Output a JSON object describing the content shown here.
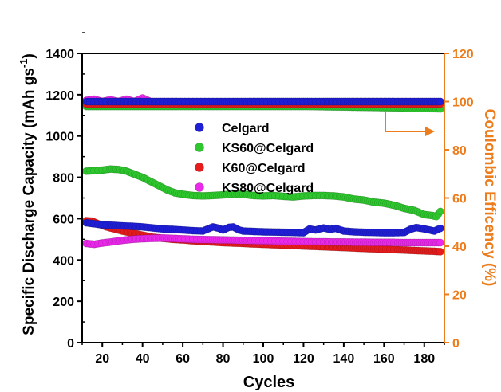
{
  "chart_data": {
    "type": "scatter",
    "xlabel": "Cycles",
    "ylabel_left": "Specific Discharge Capacity (mAh gs",
    "ylabel_left_sup": "-1",
    "ylabel_left_close": ")",
    "ylabel_right": "Coulombic Efficency (%)",
    "xlim": [
      10,
      190
    ],
    "ylim_left": [
      0,
      1400
    ],
    "ylim_right": [
      0,
      120
    ],
    "x_ticks": [
      20,
      40,
      60,
      80,
      100,
      120,
      140,
      160,
      180
    ],
    "y_ticks_left": [
      0,
      200,
      400,
      600,
      800,
      1000,
      1200,
      1400
    ],
    "y_ticks_right": [
      0,
      20,
      40,
      60,
      80,
      100,
      120
    ],
    "grid": false,
    "legend_position": "center",
    "right_axis_color": "#ec7c1c",
    "series": [
      {
        "name": "Celgard",
        "color": "#1f1fd8",
        "axis": "left",
        "capacity_points": [
          [
            12,
            580
          ],
          [
            16,
            575
          ],
          [
            20,
            570
          ],
          [
            25,
            568
          ],
          [
            30,
            565
          ],
          [
            35,
            563
          ],
          [
            40,
            560
          ],
          [
            45,
            555
          ],
          [
            50,
            550
          ],
          [
            55,
            548
          ],
          [
            60,
            545
          ],
          [
            65,
            542
          ],
          [
            70,
            540
          ],
          [
            72,
            548
          ],
          [
            75,
            560
          ],
          [
            78,
            553
          ],
          [
            80,
            545
          ],
          [
            83,
            558
          ],
          [
            85,
            560
          ],
          [
            88,
            545
          ],
          [
            90,
            540
          ],
          [
            95,
            538
          ],
          [
            100,
            536
          ],
          [
            105,
            535
          ],
          [
            110,
            534
          ],
          [
            115,
            533
          ],
          [
            120,
            532
          ],
          [
            123,
            550
          ],
          [
            126,
            545
          ],
          [
            130,
            555
          ],
          [
            133,
            548
          ],
          [
            136,
            553
          ],
          [
            140,
            540
          ],
          [
            145,
            536
          ],
          [
            150,
            534
          ],
          [
            155,
            533
          ],
          [
            160,
            532
          ],
          [
            165,
            532
          ],
          [
            170,
            533
          ],
          [
            173,
            548
          ],
          [
            176,
            557
          ],
          [
            180,
            550
          ],
          [
            185,
            540
          ],
          [
            188,
            553
          ]
        ],
        "efficiency": [
          [
            12,
            100
          ],
          [
            40,
            100
          ],
          [
            80,
            100
          ],
          [
            120,
            100
          ],
          [
            160,
            100
          ],
          [
            188,
            100
          ]
        ]
      },
      {
        "name": "KS60@Celgard",
        "color": "#2ec82e",
        "axis": "left",
        "capacity_points": [
          [
            12,
            830
          ],
          [
            16,
            832
          ],
          [
            20,
            835
          ],
          [
            24,
            840
          ],
          [
            28,
            838
          ],
          [
            32,
            830
          ],
          [
            36,
            815
          ],
          [
            40,
            800
          ],
          [
            44,
            780
          ],
          [
            48,
            760
          ],
          [
            52,
            740
          ],
          [
            56,
            725
          ],
          [
            60,
            718
          ],
          [
            65,
            712
          ],
          [
            70,
            710
          ],
          [
            75,
            712
          ],
          [
            80,
            715
          ],
          [
            85,
            720
          ],
          [
            90,
            718
          ],
          [
            95,
            712
          ],
          [
            100,
            710
          ],
          [
            105,
            712
          ],
          [
            110,
            708
          ],
          [
            115,
            705
          ],
          [
            120,
            710
          ],
          [
            125,
            712
          ],
          [
            130,
            712
          ],
          [
            135,
            710
          ],
          [
            140,
            705
          ],
          [
            145,
            695
          ],
          [
            150,
            690
          ],
          [
            155,
            680
          ],
          [
            160,
            675
          ],
          [
            165,
            665
          ],
          [
            170,
            650
          ],
          [
            175,
            640
          ],
          [
            180,
            620
          ],
          [
            184,
            615
          ],
          [
            186,
            610
          ],
          [
            188,
            635
          ]
        ],
        "efficiency": [
          [
            12,
            98
          ],
          [
            40,
            98
          ],
          [
            80,
            98
          ],
          [
            120,
            98
          ],
          [
            160,
            97.5
          ],
          [
            188,
            97
          ]
        ]
      },
      {
        "name": "K60@Celgard",
        "color": "#e81c1c",
        "axis": "left",
        "capacity_points": [
          [
            12,
            590
          ],
          [
            15,
            588
          ],
          [
            18,
            575
          ],
          [
            22,
            560
          ],
          [
            26,
            550
          ],
          [
            30,
            540
          ],
          [
            35,
            530
          ],
          [
            40,
            520
          ],
          [
            45,
            510
          ],
          [
            50,
            505
          ],
          [
            55,
            500
          ],
          [
            60,
            497
          ],
          [
            65,
            493
          ],
          [
            70,
            490
          ],
          [
            75,
            487
          ],
          [
            80,
            484
          ],
          [
            85,
            482
          ],
          [
            90,
            480
          ],
          [
            95,
            478
          ],
          [
            100,
            476
          ],
          [
            105,
            474
          ],
          [
            110,
            472
          ],
          [
            115,
            470
          ],
          [
            120,
            468
          ],
          [
            125,
            466
          ],
          [
            130,
            464
          ],
          [
            135,
            462
          ],
          [
            140,
            460
          ],
          [
            145,
            458
          ],
          [
            150,
            456
          ],
          [
            155,
            454
          ],
          [
            160,
            452
          ],
          [
            165,
            450
          ],
          [
            170,
            448
          ],
          [
            175,
            446
          ],
          [
            180,
            444
          ],
          [
            185,
            442
          ],
          [
            188,
            440
          ]
        ],
        "efficiency": [
          [
            12,
            99
          ],
          [
            40,
            99
          ],
          [
            80,
            99
          ],
          [
            120,
            99
          ],
          [
            160,
            99
          ],
          [
            188,
            99
          ]
        ]
      },
      {
        "name": "KS80@Celgard",
        "color": "#ec28ec",
        "axis": "left",
        "capacity_points": [
          [
            12,
            480
          ],
          [
            16,
            476
          ],
          [
            20,
            482
          ],
          [
            25,
            488
          ],
          [
            30,
            495
          ],
          [
            35,
            500
          ],
          [
            40,
            503
          ],
          [
            45,
            505
          ],
          [
            50,
            506
          ],
          [
            55,
            504
          ],
          [
            60,
            502
          ],
          [
            65,
            500
          ],
          [
            70,
            499
          ],
          [
            75,
            498
          ],
          [
            80,
            497
          ],
          [
            85,
            496
          ],
          [
            90,
            495
          ],
          [
            95,
            494
          ],
          [
            100,
            493
          ],
          [
            105,
            492
          ],
          [
            110,
            491
          ],
          [
            115,
            490
          ],
          [
            120,
            489
          ],
          [
            125,
            488
          ],
          [
            130,
            488
          ],
          [
            135,
            487
          ],
          [
            140,
            487
          ],
          [
            145,
            486
          ],
          [
            150,
            486
          ],
          [
            155,
            485
          ],
          [
            160,
            485
          ],
          [
            165,
            485
          ],
          [
            170,
            484
          ],
          [
            175,
            484
          ],
          [
            180,
            484
          ],
          [
            185,
            484
          ],
          [
            188,
            484
          ]
        ],
        "efficiency": [
          [
            12,
            100.5
          ],
          [
            16,
            101
          ],
          [
            20,
            100
          ],
          [
            24,
            100.8
          ],
          [
            28,
            100
          ],
          [
            32,
            101
          ],
          [
            36,
            100
          ],
          [
            40,
            101.5
          ],
          [
            44,
            100
          ],
          [
            60,
            100
          ],
          [
            100,
            100
          ],
          [
            140,
            100
          ],
          [
            188,
            100
          ]
        ]
      }
    ]
  }
}
